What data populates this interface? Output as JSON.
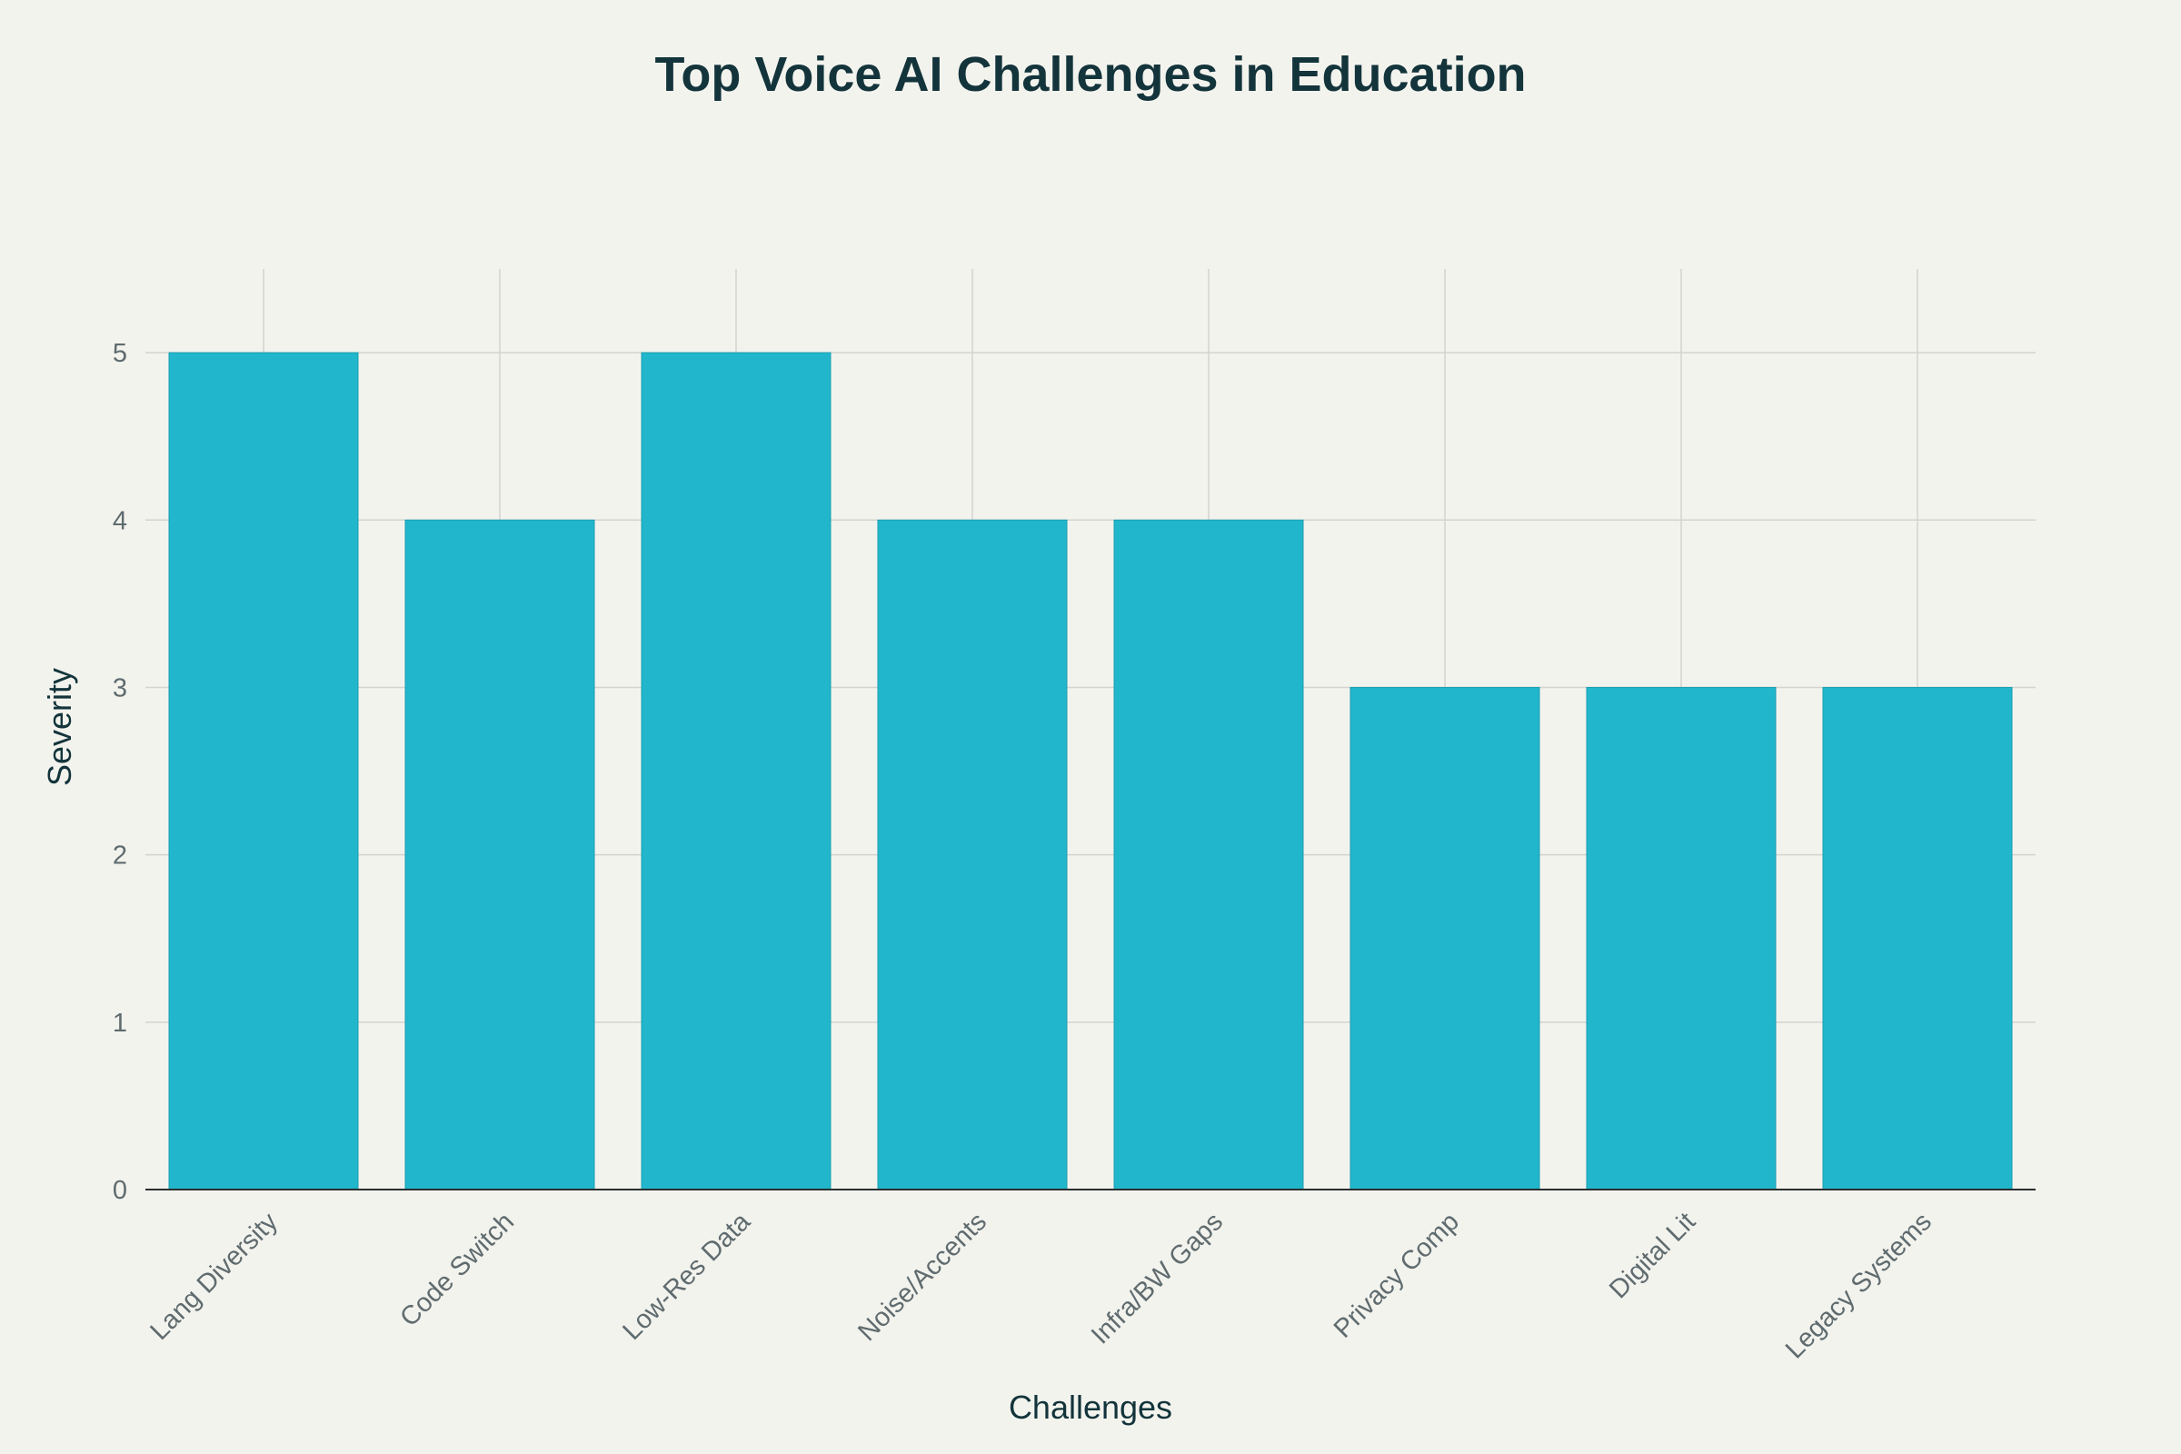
{
  "chart_data": {
    "type": "bar",
    "title": "Top Voice AI Challenges in Education",
    "xlabel": "Challenges",
    "ylabel": "Severity",
    "categories": [
      "Lang Diversity",
      "Code Switch",
      "Low-Res Data",
      "Noise/Accents",
      "Infra/BW Gaps",
      "Privacy Comp",
      "Digital Lit",
      "Legacy Systems"
    ],
    "values": [
      5,
      4,
      5,
      4,
      4,
      3,
      3,
      3
    ],
    "ylim": [
      0,
      5.5
    ],
    "yticks": [
      0,
      1,
      2,
      3,
      4,
      5
    ],
    "grid": true,
    "legend": "none",
    "bar_color": "#21b6cc",
    "background": "#f3f3ee"
  }
}
